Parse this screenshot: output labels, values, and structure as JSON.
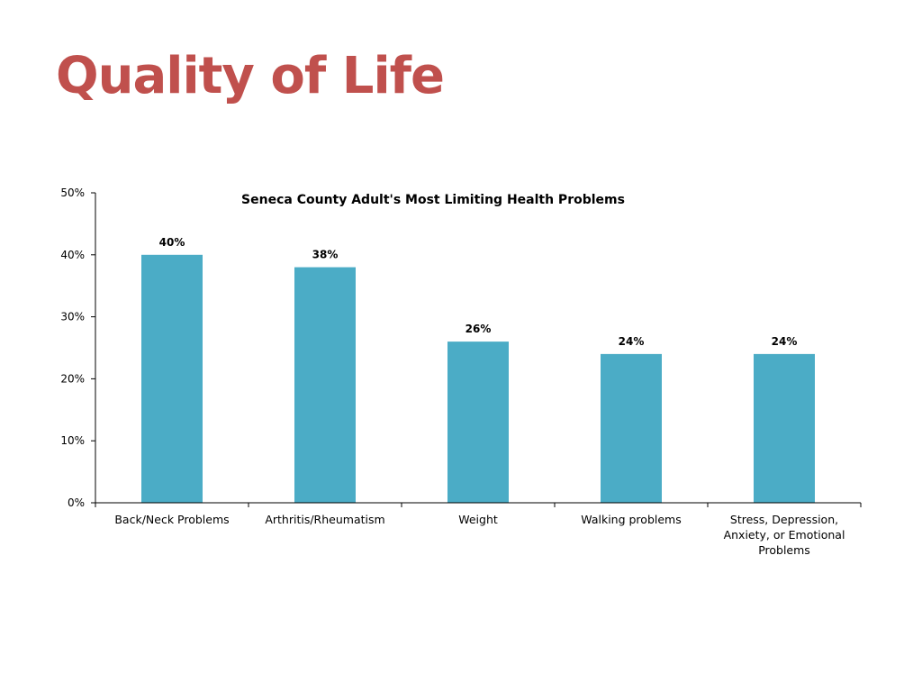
{
  "slide": {
    "title": "Quality of Life",
    "title_color": "#C0504D"
  },
  "chart_data": {
    "type": "bar",
    "title": "Seneca County Adult's Most Limiting Health Problems",
    "categories": [
      [
        "Back/Neck Problems"
      ],
      [
        "Arthritis/Rheumatism"
      ],
      [
        "Weight"
      ],
      [
        "Walking problems"
      ],
      [
        "Stress, Depression,",
        "Anxiety, or Emotional",
        "Problems"
      ]
    ],
    "values": [
      40,
      38,
      26,
      24,
      24
    ],
    "data_labels": [
      "40%",
      "38%",
      "26%",
      "24%",
      "24%"
    ],
    "ylim": [
      0,
      50
    ],
    "y_ticks": [
      "0%",
      "10%",
      "20%",
      "30%",
      "40%",
      "50%"
    ],
    "xlabel": "",
    "ylabel": "",
    "grid": false,
    "legend": "none",
    "bar_color": "#4BACC6",
    "axis_color": "#000000"
  }
}
